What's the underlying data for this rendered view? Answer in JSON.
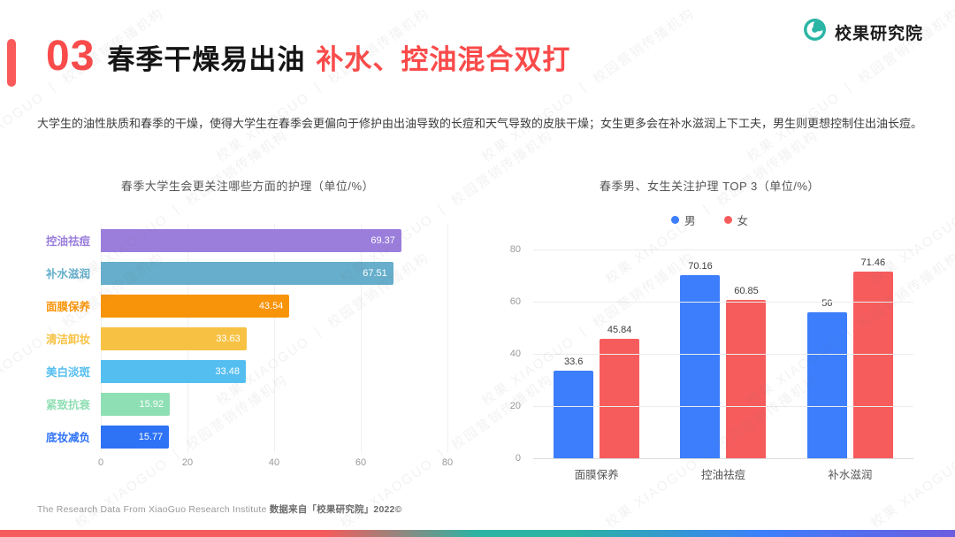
{
  "header": {
    "section_number": "03",
    "title_black": "春季干燥易出油",
    "title_red": "补水、控油混合双打",
    "brand": "校果研究院"
  },
  "intro": "大学生的油性肤质和春季的干燥，使得大学生在春季会更偏向于修护由出油导致的长痘和天气导致的皮肤干燥；女生更多会在补水滋润上下工夫，男生则更想控制住出油长痘。",
  "watermark": "校果 XIAOGUO 丨 校园营销传播机构",
  "footer": {
    "en": "The Research Data From XiaoGuo Research Institute ",
    "zh": "数据来自「校果研究院」2022©"
  },
  "colors": {
    "accent_red": "#FA4B4B",
    "brand_teal": "#2AB5A5",
    "strip_gradient": [
      "#F55B5B",
      "#2BB3A3",
      "#3D7FFC",
      "#6C5CE0"
    ]
  },
  "chart_data": [
    {
      "type": "bar",
      "orientation": "horizontal",
      "title": "春季大学生会更关注哪些方面的护理（单位/%）",
      "categories": [
        "控油祛痘",
        "补水滋润",
        "面膜保养",
        "清洁卸妆",
        "美白淡斑",
        "紧致抗衰",
        "底妆减负"
      ],
      "values": [
        69.37,
        67.51,
        43.54,
        33.63,
        33.48,
        15.92,
        15.77
      ],
      "colors": [
        "#9B7EDC",
        "#66AECB",
        "#F8940A",
        "#F7C244",
        "#55BEF0",
        "#8FDFB4",
        "#2E72F6"
      ],
      "xlim": [
        0,
        80
      ],
      "xticks": [
        0,
        20,
        40,
        60,
        80
      ],
      "grid": "vertical",
      "value_labels": "inside-end"
    },
    {
      "type": "bar",
      "orientation": "vertical",
      "title": "春季男、女生关注护理 TOP 3（单位/%）",
      "categories": [
        "面膜保养",
        "控油祛痘",
        "补水滋润"
      ],
      "series": [
        {
          "name": "男",
          "color": "#3C7EFB",
          "values": [
            33.6,
            70.16,
            56
          ]
        },
        {
          "name": "女",
          "color": "#F75C5C",
          "values": [
            45.84,
            60.85,
            71.46
          ]
        }
      ],
      "ylim": [
        0,
        80
      ],
      "yticks": [
        0,
        20,
        40,
        60,
        80
      ],
      "grid": "horizontal",
      "legend_position": "top",
      "value_labels": "above"
    }
  ]
}
